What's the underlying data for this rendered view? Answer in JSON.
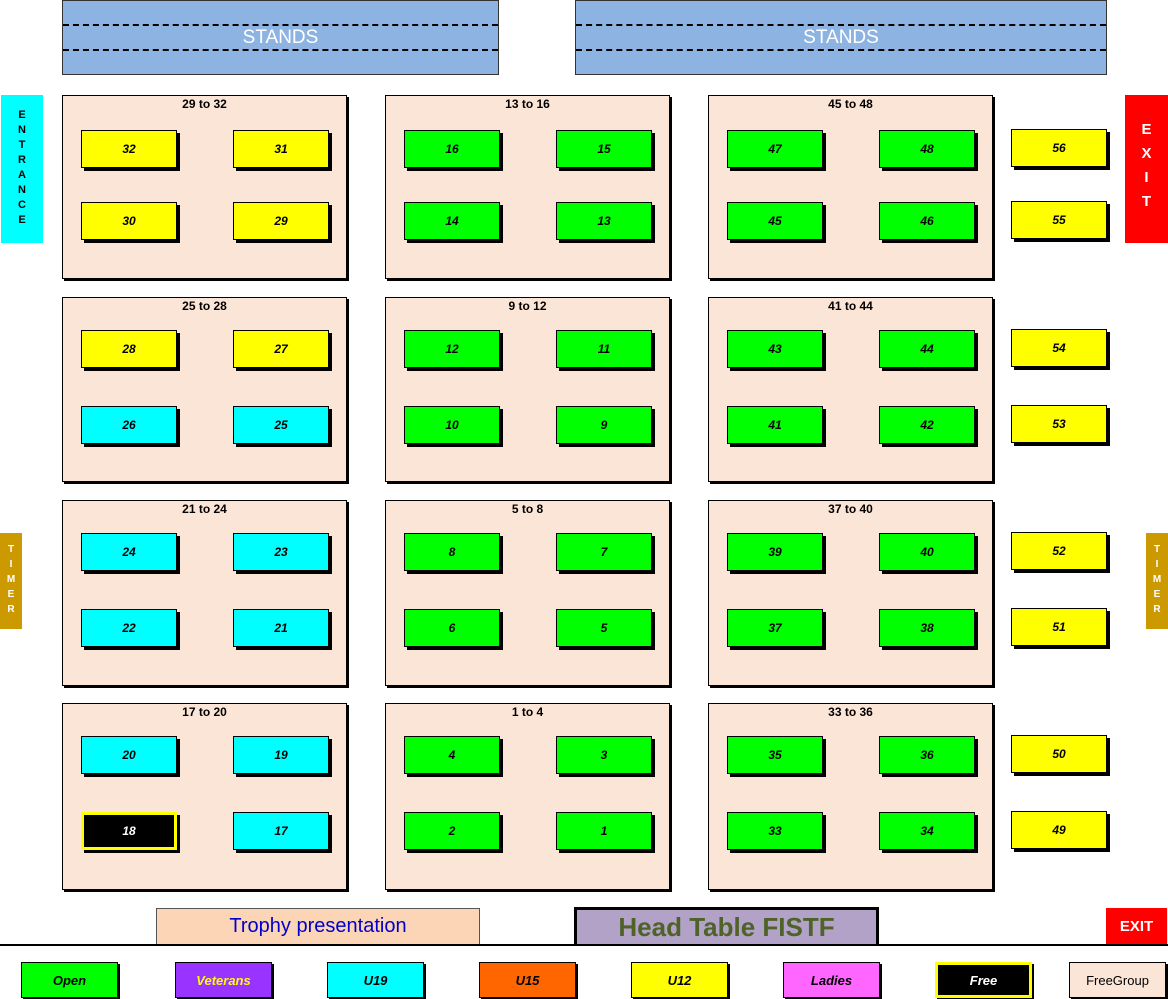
{
  "stands": [
    "STANDS",
    "STANDS"
  ],
  "entrance": "ENTRANCE",
  "exit_side": "EXIT",
  "timer": "TIMER",
  "trophy": "Trophy presentation",
  "head_table": "Head Table FISTF",
  "exit_bottom": "EXIT",
  "categories": {
    "open": {
      "label": "Open",
      "color": "#00ff00",
      "text": "#000"
    },
    "veterans": {
      "label": "Veterans",
      "color": "#9933ff",
      "text": "#ffff00"
    },
    "u19": {
      "label": "U19",
      "color": "#00ffff",
      "text": "#000"
    },
    "u15": {
      "label": "U15",
      "color": "#ff6600",
      "text": "#000"
    },
    "u12": {
      "label": "U12",
      "color": "#ffff00",
      "text": "#000"
    },
    "ladies": {
      "label": "Ladies",
      "color": "#ff66ff",
      "text": "#000"
    },
    "free": {
      "label": "Free",
      "color": "#000000",
      "text": "#ffffff"
    },
    "freegroup": {
      "label": "FreeGroup",
      "color": "#fbe5d6",
      "text": "#000"
    }
  },
  "legend": [
    "open",
    "veterans",
    "u19",
    "u15",
    "u12",
    "ladies",
    "free",
    "freegroup"
  ],
  "groups": [
    [
      {
        "label": "29 to 32",
        "tables": [
          [
            "32",
            "u12"
          ],
          [
            "31",
            "u12"
          ],
          [
            "30",
            "u12"
          ],
          [
            "29",
            "u12"
          ]
        ]
      },
      {
        "label": "25 to 28",
        "tables": [
          [
            "28",
            "u12"
          ],
          [
            "27",
            "u12"
          ],
          [
            "26",
            "u19"
          ],
          [
            "25",
            "u19"
          ]
        ]
      },
      {
        "label": "21 to 24",
        "tables": [
          [
            "24",
            "u19"
          ],
          [
            "23",
            "u19"
          ],
          [
            "22",
            "u19"
          ],
          [
            "21",
            "u19"
          ]
        ]
      },
      {
        "label": "17 to 20",
        "tables": [
          [
            "20",
            "u19"
          ],
          [
            "19",
            "u19"
          ],
          [
            "18",
            "free"
          ],
          [
            "17",
            "u19"
          ]
        ]
      }
    ],
    [
      {
        "label": "13 to 16",
        "tables": [
          [
            "16",
            "open"
          ],
          [
            "15",
            "open"
          ],
          [
            "14",
            "open"
          ],
          [
            "13",
            "open"
          ]
        ]
      },
      {
        "label": "9 to 12",
        "tables": [
          [
            "12",
            "open"
          ],
          [
            "11",
            "open"
          ],
          [
            "10",
            "open"
          ],
          [
            "9",
            "open"
          ]
        ]
      },
      {
        "label": "5 to 8",
        "tables": [
          [
            "8",
            "open"
          ],
          [
            "7",
            "open"
          ],
          [
            "6",
            "open"
          ],
          [
            "5",
            "open"
          ]
        ]
      },
      {
        "label": "1 to 4",
        "tables": [
          [
            "4",
            "open"
          ],
          [
            "3",
            "open"
          ],
          [
            "2",
            "open"
          ],
          [
            "1",
            "open"
          ]
        ]
      }
    ],
    [
      {
        "label": "45 to 48",
        "tables": [
          [
            "47",
            "open"
          ],
          [
            "48",
            "open"
          ],
          [
            "45",
            "open"
          ],
          [
            "46",
            "open"
          ]
        ]
      },
      {
        "label": "41 to 44",
        "tables": [
          [
            "43",
            "open"
          ],
          [
            "44",
            "open"
          ],
          [
            "41",
            "open"
          ],
          [
            "42",
            "open"
          ]
        ]
      },
      {
        "label": "37 to 40",
        "tables": [
          [
            "39",
            "open"
          ],
          [
            "40",
            "open"
          ],
          [
            "37",
            "open"
          ],
          [
            "38",
            "open"
          ]
        ]
      },
      {
        "label": "33 to 36",
        "tables": [
          [
            "35",
            "open"
          ],
          [
            "36",
            "open"
          ],
          [
            "33",
            "open"
          ],
          [
            "34",
            "open"
          ]
        ]
      }
    ]
  ],
  "side_tables": [
    [
      [
        "56",
        "u12"
      ],
      [
        "55",
        "u12"
      ]
    ],
    [
      [
        "54",
        "u12"
      ],
      [
        "53",
        "u12"
      ]
    ],
    [
      [
        "52",
        "u12"
      ],
      [
        "51",
        "u12"
      ]
    ],
    [
      [
        "50",
        "u12"
      ],
      [
        "49",
        "u12"
      ]
    ]
  ]
}
